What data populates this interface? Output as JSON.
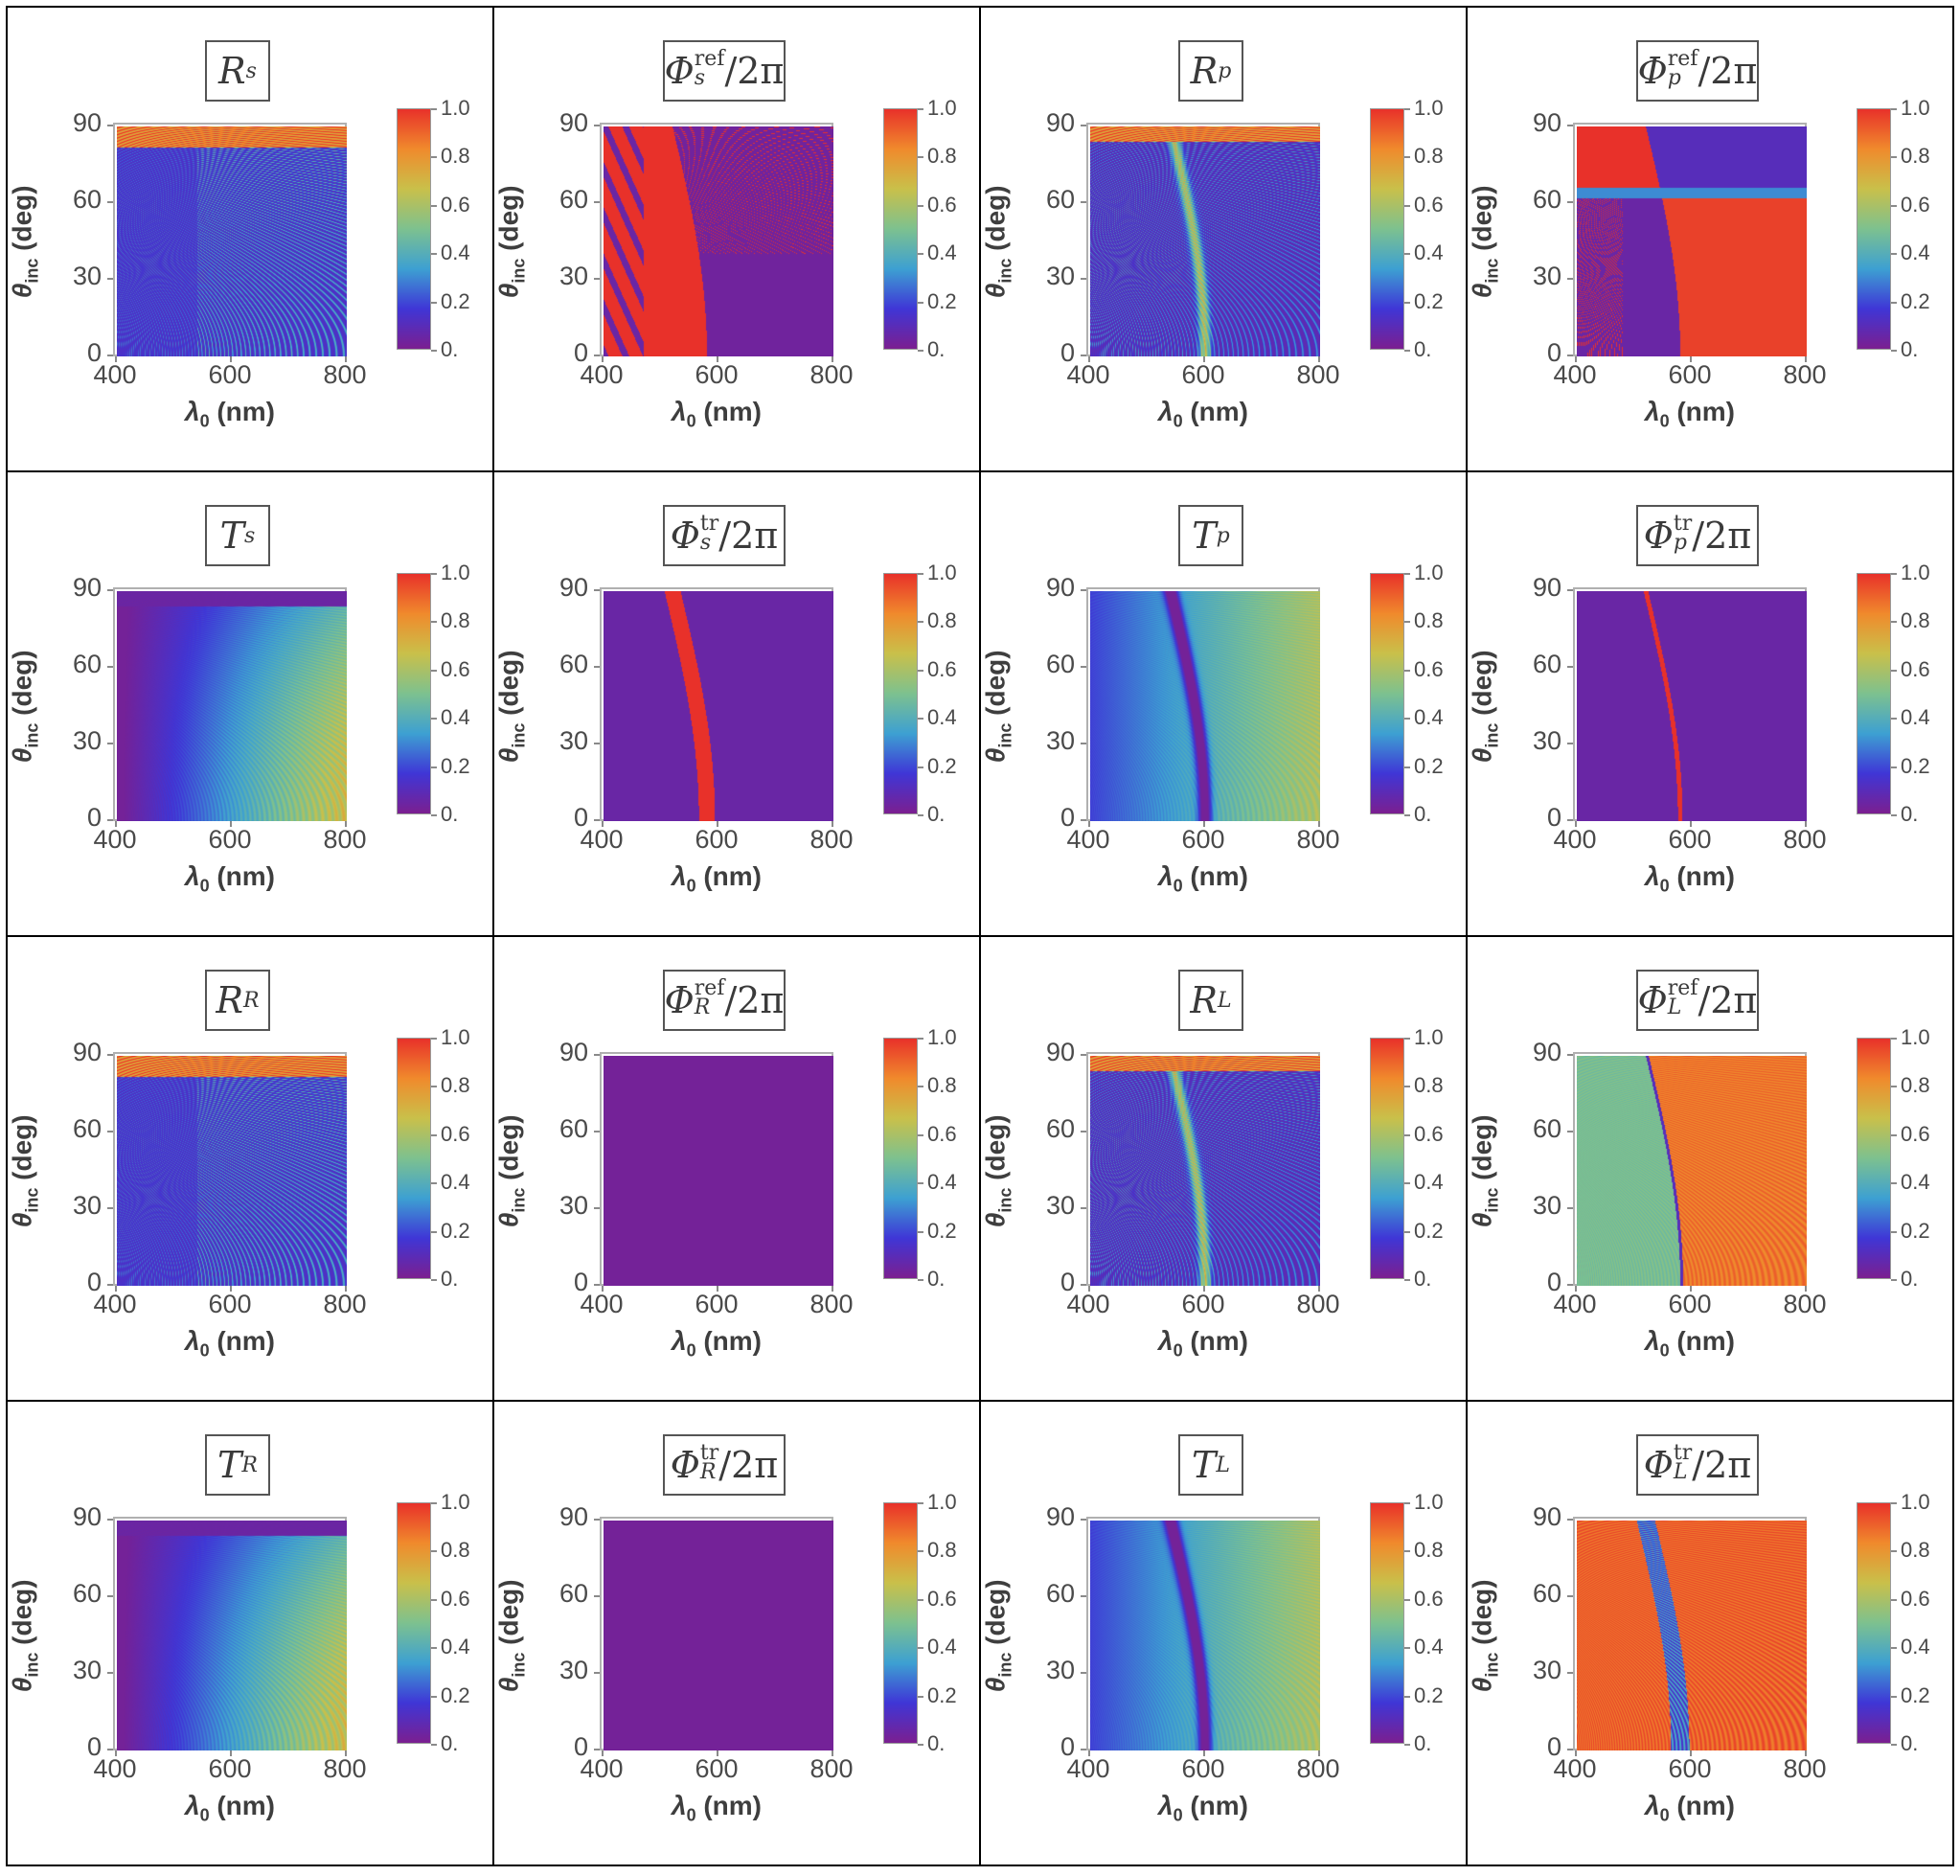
{
  "colorbar": {
    "ticks": [
      "1.0",
      "0.8",
      "0.6",
      "0.4",
      "0.2",
      "0."
    ],
    "colors": [
      "#7b1f90",
      "#3f36d6",
      "#3da0d2",
      "#7dc18f",
      "#c9c04a",
      "#f08a2c",
      "#e8312a"
    ]
  },
  "axes": {
    "x_label_sym": "λ",
    "x_label_sub": "0",
    "x_label_unit": "(nm)",
    "y_label_sym": "θ",
    "y_label_sub": "inc",
    "y_label_unit": "(deg)",
    "x_ticks": [
      "400",
      "600",
      "800"
    ],
    "y_ticks": [
      "0",
      "30",
      "60",
      "90"
    ]
  },
  "chart_data": [
    {
      "type": "heatmap",
      "title_main": "R",
      "title_sub": "s",
      "title_sup": "",
      "title_suffix": "",
      "pattern": "R_s",
      "xlim": [
        400,
        800
      ],
      "ylim": [
        0,
        90
      ],
      "zlim": [
        0,
        1
      ]
    },
    {
      "type": "heatmap",
      "title_main": "Φ",
      "title_sub": "s",
      "title_sup": "ref",
      "title_suffix": "/2π",
      "pattern": "Phi_ref_s",
      "xlim": [
        400,
        800
      ],
      "ylim": [
        0,
        90
      ],
      "zlim": [
        0,
        1
      ]
    },
    {
      "type": "heatmap",
      "title_main": "R",
      "title_sub": "p",
      "title_sup": "",
      "title_suffix": "",
      "pattern": "R_p",
      "xlim": [
        400,
        800
      ],
      "ylim": [
        0,
        90
      ],
      "zlim": [
        0,
        1
      ]
    },
    {
      "type": "heatmap",
      "title_main": "Φ",
      "title_sub": "p",
      "title_sup": "ref",
      "title_suffix": "/2π",
      "pattern": "Phi_ref_p",
      "xlim": [
        400,
        800
      ],
      "ylim": [
        0,
        90
      ],
      "zlim": [
        0,
        1
      ]
    },
    {
      "type": "heatmap",
      "title_main": "T",
      "title_sub": "s",
      "title_sup": "",
      "title_suffix": "",
      "pattern": "T_s",
      "xlim": [
        400,
        800
      ],
      "ylim": [
        0,
        90
      ],
      "zlim": [
        0,
        1
      ]
    },
    {
      "type": "heatmap",
      "title_main": "Φ",
      "title_sub": "s",
      "title_sup": "tr",
      "title_suffix": "/2π",
      "pattern": "Phi_tr_s",
      "xlim": [
        400,
        800
      ],
      "ylim": [
        0,
        90
      ],
      "zlim": [
        0,
        1
      ]
    },
    {
      "type": "heatmap",
      "title_main": "T",
      "title_sub": "p",
      "title_sup": "",
      "title_suffix": "",
      "pattern": "T_p",
      "xlim": [
        400,
        800
      ],
      "ylim": [
        0,
        90
      ],
      "zlim": [
        0,
        1
      ]
    },
    {
      "type": "heatmap",
      "title_main": "Φ",
      "title_sub": "p",
      "title_sup": "tr",
      "title_suffix": "/2π",
      "pattern": "Phi_tr_p",
      "xlim": [
        400,
        800
      ],
      "ylim": [
        0,
        90
      ],
      "zlim": [
        0,
        1
      ]
    },
    {
      "type": "heatmap",
      "title_main": "R",
      "title_sub": "R",
      "title_sup": "",
      "title_suffix": "",
      "pattern": "R_R",
      "xlim": [
        400,
        800
      ],
      "ylim": [
        0,
        90
      ],
      "zlim": [
        0,
        1
      ]
    },
    {
      "type": "heatmap",
      "title_main": "Φ",
      "title_sub": "R",
      "title_sup": "ref",
      "title_suffix": "/2π",
      "pattern": "uniform_zero",
      "xlim": [
        400,
        800
      ],
      "ylim": [
        0,
        90
      ],
      "zlim": [
        0,
        1
      ]
    },
    {
      "type": "heatmap",
      "title_main": "R",
      "title_sub": "L",
      "title_sup": "",
      "title_suffix": "",
      "pattern": "R_L",
      "xlim": [
        400,
        800
      ],
      "ylim": [
        0,
        90
      ],
      "zlim": [
        0,
        1
      ]
    },
    {
      "type": "heatmap",
      "title_main": "Φ",
      "title_sub": "L",
      "title_sup": "ref",
      "title_suffix": "/2π",
      "pattern": "Phi_ref_L",
      "xlim": [
        400,
        800
      ],
      "ylim": [
        0,
        90
      ],
      "zlim": [
        0,
        1
      ]
    },
    {
      "type": "heatmap",
      "title_main": "T",
      "title_sub": "R",
      "title_sup": "",
      "title_suffix": "",
      "pattern": "T_R",
      "xlim": [
        400,
        800
      ],
      "ylim": [
        0,
        90
      ],
      "zlim": [
        0,
        1
      ]
    },
    {
      "type": "heatmap",
      "title_main": "Φ",
      "title_sub": "R",
      "title_sup": "tr",
      "title_suffix": "/2π",
      "pattern": "uniform_zero",
      "xlim": [
        400,
        800
      ],
      "ylim": [
        0,
        90
      ],
      "zlim": [
        0,
        1
      ]
    },
    {
      "type": "heatmap",
      "title_main": "T",
      "title_sub": "L",
      "title_sup": "",
      "title_suffix": "",
      "pattern": "T_L",
      "xlim": [
        400,
        800
      ],
      "ylim": [
        0,
        90
      ],
      "zlim": [
        0,
        1
      ]
    },
    {
      "type": "heatmap",
      "title_main": "Φ",
      "title_sub": "L",
      "title_sup": "tr",
      "title_suffix": "/2π",
      "pattern": "Phi_tr_L",
      "xlim": [
        400,
        800
      ],
      "ylim": [
        0,
        90
      ],
      "zlim": [
        0,
        1
      ]
    }
  ]
}
